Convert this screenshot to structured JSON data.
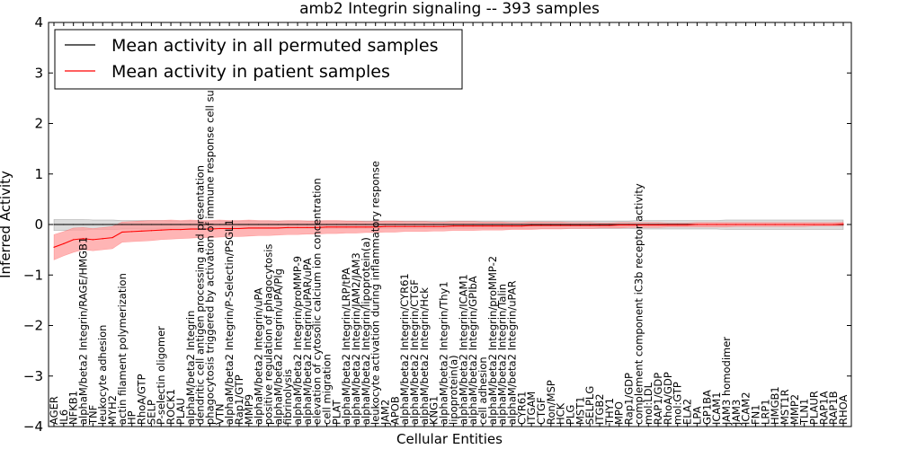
{
  "chart_data": {
    "type": "line",
    "title": "amb2 Integrin signaling -- 393 samples",
    "xlabel": "Cellular Entities",
    "ylabel": "Inferred Activity",
    "ylim": [
      -4,
      4
    ],
    "yticks": [
      -4,
      -3,
      -2,
      -1,
      0,
      1,
      2,
      3,
      4
    ],
    "legend_position": "top-left",
    "categories": [
      "AGER",
      "IL6",
      "NFKB1",
      "alphaM/beta2 Integrin/RAGE/HMGB1",
      "TNF",
      "leukocyte adhesion",
      "MYH2",
      "actin filament polymerization",
      "HP",
      "RhoA/GTP",
      "SELP",
      "P-selectin oligomer",
      "ROCK1",
      "PLAU",
      "alphaM/beta2 Integrin",
      "dendritic cell antigen processing and presentation",
      "phagocytosis triggered by activation of immune response cell surface",
      "VTN",
      "alphaM/beta2 Integrin/P-Selectin/PSGL1",
      "Rap1/GTP",
      "MMP9",
      "alphaM/beta2 Integrin/uPA",
      "positive regulation of phagocytosis",
      "alphaM/beta2 Integrin/uPA/Plg",
      "fibrinolysis",
      "alphaM/beta2 Integrin/proMMP-9",
      "alphaM/beta2 Integrin/uPAR/uPA",
      "elevation of cytosolic calcium ion concentration",
      "cell migration",
      "PLAT",
      "alphaM/beta2 Integrin/LRP/tPA",
      "alphaM/beta2 Integrin/JAM2/JAM3",
      "alphaM/beta2 Integrin/lipoprotein(a)",
      "leukocyte activation during inflammatory response",
      "JAM2",
      "APOB",
      "alphaM/beta2 Integrin/CYR61",
      "alphaM/beta2 Integrin/CTGF",
      "alphaM/beta2 Integrin/Hck",
      "KNG1",
      "alphaM/beta2 Integrin/Thy1",
      "lipoprotein(a)",
      "alphaM/beta2 Integrin/ICAM1",
      "alphaM/beta2 Integrin/GPIbA",
      "cell adhesion",
      "alphaM/beta2 Integrin/proMMP-2",
      "alphaM/beta2 Integrin/Talin",
      "alphaM/beta2 Integrin/uPAR",
      "CYR61",
      "ITGAM",
      "CTGF",
      "Ron/MSP",
      "HCK",
      "PLG",
      "MST1",
      "SELPLG",
      "ITGB2",
      "THY1",
      "MPO",
      "Rap1/GDP",
      "complement component iC3b receptor activity",
      "mol:LDL",
      "RAP1/GDP",
      "RhoA/GDP",
      "mol:GTP",
      "ELA2",
      "LPA",
      "GP1BA",
      "ICAM1",
      "JAM3 homodimer",
      "JAM3",
      "ICAM2",
      "FN1",
      "LRP1",
      "HMGB1",
      "MST1R",
      "MMP2",
      "TLN1",
      "PLAUR",
      "RAP1A",
      "RAP1B",
      "RHOA"
    ],
    "series": [
      {
        "name": "Mean activity in all permuted samples",
        "color": "#000000",
        "band_color": "#c0c0c0",
        "values": [
          0,
          0,
          0,
          0,
          0,
          0,
          0,
          0,
          0,
          0,
          0,
          0,
          0,
          0,
          0,
          0,
          0,
          0,
          0,
          0,
          0,
          0,
          0,
          0,
          0,
          0,
          0,
          0,
          0,
          0,
          0,
          0,
          0,
          0,
          0,
          0,
          0,
          0,
          0,
          0,
          0,
          0,
          0,
          0,
          0,
          0,
          0,
          0,
          0,
          0,
          0,
          0,
          0,
          0,
          0,
          0,
          0,
          0,
          0,
          0,
          0,
          0,
          0,
          0,
          0,
          0,
          0,
          0,
          0,
          0,
          0,
          0,
          0,
          0,
          0,
          0,
          0,
          0,
          0,
          0,
          0,
          0
        ],
        "band_lower": [
          -0.12,
          -0.12,
          -0.11,
          -0.11,
          -0.1,
          -0.1,
          -0.1,
          -0.09,
          -0.09,
          -0.09,
          -0.09,
          -0.08,
          -0.08,
          -0.08,
          -0.08,
          -0.08,
          -0.08,
          -0.08,
          -0.08,
          -0.08,
          -0.08,
          -0.08,
          -0.08,
          -0.08,
          -0.08,
          -0.08,
          -0.08,
          -0.08,
          -0.08,
          -0.08,
          -0.08,
          -0.08,
          -0.08,
          -0.08,
          -0.08,
          -0.08,
          -0.08,
          -0.08,
          -0.08,
          -0.08,
          -0.08,
          -0.08,
          -0.08,
          -0.08,
          -0.08,
          -0.08,
          -0.08,
          -0.08,
          -0.08,
          -0.08,
          -0.08,
          -0.08,
          -0.08,
          -0.08,
          -0.08,
          -0.08,
          -0.08,
          -0.08,
          -0.08,
          -0.08,
          -0.09,
          -0.09,
          -0.09,
          -0.09,
          -0.09,
          -0.09,
          -0.09,
          -0.09,
          -0.09,
          -0.1,
          -0.1,
          -0.1,
          -0.1,
          -0.1,
          -0.1,
          -0.1,
          -0.1,
          -0.1,
          -0.1,
          -0.1,
          -0.1,
          -0.1
        ],
        "band_upper": [
          0.1,
          0.1,
          0.1,
          0.1,
          0.09,
          0.09,
          0.09,
          0.08,
          0.08,
          0.08,
          0.08,
          0.08,
          0.07,
          0.07,
          0.07,
          0.07,
          0.07,
          0.07,
          0.07,
          0.07,
          0.07,
          0.07,
          0.07,
          0.07,
          0.07,
          0.07,
          0.07,
          0.07,
          0.07,
          0.07,
          0.07,
          0.07,
          0.07,
          0.07,
          0.07,
          0.07,
          0.07,
          0.07,
          0.07,
          0.07,
          0.07,
          0.07,
          0.07,
          0.07,
          0.07,
          0.07,
          0.07,
          0.07,
          0.07,
          0.07,
          0.07,
          0.07,
          0.07,
          0.07,
          0.07,
          0.07,
          0.07,
          0.07,
          0.07,
          0.07,
          0.08,
          0.08,
          0.08,
          0.08,
          0.08,
          0.08,
          0.08,
          0.08,
          0.08,
          0.09,
          0.09,
          0.09,
          0.09,
          0.09,
          0.09,
          0.09,
          0.09,
          0.09,
          0.09,
          0.09,
          0.09,
          0.09
        ]
      },
      {
        "name": "Mean activity in patient samples",
        "color": "#ff0000",
        "band_color": "#ff9c9c",
        "values": [
          -0.45,
          -0.38,
          -0.3,
          -0.28,
          -0.3,
          -0.28,
          -0.26,
          -0.15,
          -0.14,
          -0.13,
          -0.12,
          -0.11,
          -0.1,
          -0.1,
          -0.09,
          -0.09,
          -0.09,
          -0.08,
          -0.08,
          -0.08,
          -0.07,
          -0.07,
          -0.07,
          -0.07,
          -0.06,
          -0.06,
          -0.06,
          -0.06,
          -0.05,
          -0.05,
          -0.05,
          -0.05,
          -0.05,
          -0.05,
          -0.04,
          -0.04,
          -0.04,
          -0.04,
          -0.04,
          -0.04,
          -0.04,
          -0.03,
          -0.03,
          -0.03,
          -0.03,
          -0.03,
          -0.03,
          -0.03,
          -0.03,
          -0.02,
          -0.02,
          -0.02,
          -0.02,
          -0.02,
          -0.02,
          -0.02,
          -0.02,
          -0.02,
          -0.01,
          -0.01,
          -0.01,
          -0.01,
          -0.01,
          -0.01,
          -0.01,
          -0.01,
          0,
          0,
          0,
          0,
          0,
          0,
          0,
          0,
          0,
          0,
          0,
          0,
          0,
          0,
          0,
          0.01
        ],
        "band_lower": [
          -0.7,
          -0.62,
          -0.55,
          -0.5,
          -0.52,
          -0.5,
          -0.48,
          -0.35,
          -0.34,
          -0.33,
          -0.32,
          -0.3,
          -0.29,
          -0.28,
          -0.27,
          -0.26,
          -0.26,
          -0.25,
          -0.24,
          -0.24,
          -0.23,
          -0.22,
          -0.22,
          -0.21,
          -0.2,
          -0.2,
          -0.19,
          -0.19,
          -0.18,
          -0.18,
          -0.17,
          -0.17,
          -0.16,
          -0.16,
          -0.15,
          -0.15,
          -0.14,
          -0.14,
          -0.14,
          -0.13,
          -0.13,
          -0.12,
          -0.12,
          -0.12,
          -0.11,
          -0.11,
          -0.11,
          -0.1,
          -0.1,
          -0.1,
          -0.09,
          -0.09,
          -0.09,
          -0.08,
          -0.08,
          -0.08,
          -0.07,
          -0.07,
          -0.07,
          -0.06,
          -0.06,
          -0.06,
          -0.06,
          -0.05,
          -0.05,
          -0.05,
          -0.05,
          -0.05,
          -0.05,
          -0.05,
          -0.04,
          -0.04,
          -0.04,
          -0.04,
          -0.04,
          -0.04,
          -0.04,
          -0.04,
          -0.03,
          -0.03,
          -0.03,
          -0.03
        ],
        "band_upper": [
          -0.2,
          -0.14,
          -0.07,
          -0.06,
          -0.08,
          -0.06,
          -0.04,
          0.05,
          0.06,
          0.07,
          0.08,
          0.08,
          0.09,
          0.08,
          0.09,
          0.08,
          0.08,
          0.09,
          0.08,
          0.08,
          0.09,
          0.08,
          0.08,
          0.07,
          0.08,
          0.08,
          0.07,
          0.07,
          0.08,
          0.08,
          0.07,
          0.07,
          0.06,
          0.06,
          0.07,
          0.07,
          0.06,
          0.06,
          0.06,
          0.05,
          0.05,
          0.06,
          0.06,
          0.06,
          0.05,
          0.05,
          0.05,
          0.04,
          0.04,
          0.05,
          0.05,
          0.05,
          0.05,
          0.04,
          0.04,
          0.04,
          0.03,
          0.03,
          0.04,
          0.04,
          0.04,
          0.04,
          0.04,
          0.03,
          0.03,
          0.03,
          0.04,
          0.04,
          0.04,
          0.04,
          0.04,
          0.04,
          0.04,
          0.04,
          0.04,
          0.04,
          0.04,
          0.04,
          0.04,
          0.04,
          0.04,
          0.05
        ]
      }
    ]
  }
}
